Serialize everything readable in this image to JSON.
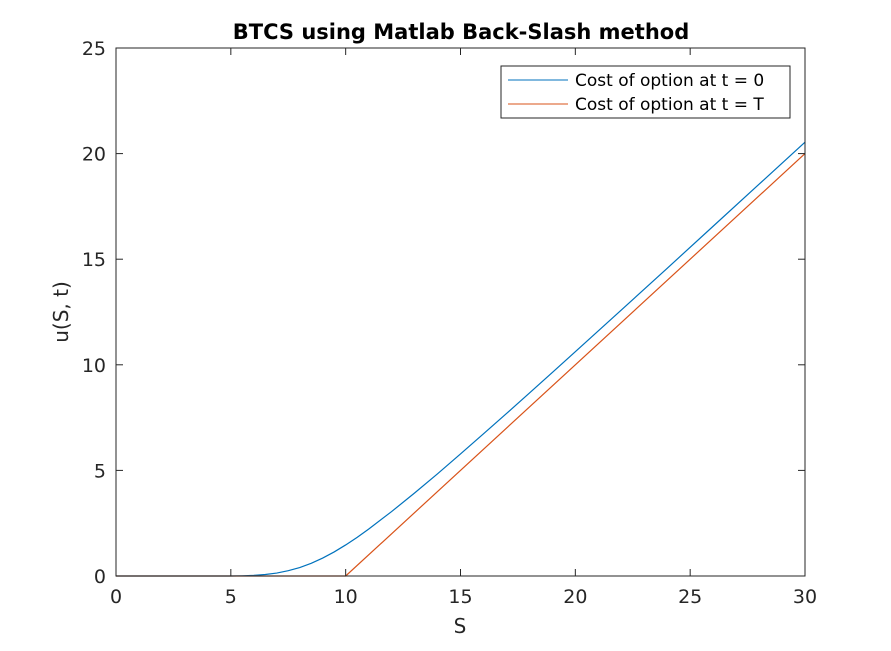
{
  "chart_data": {
    "type": "line",
    "title": "BTCS using Matlab Back-Slash method",
    "xlabel": "S",
    "ylabel": "u(S, t)",
    "xlim": [
      0,
      30
    ],
    "ylim": [
      0,
      25
    ],
    "xticks": [
      0,
      5,
      10,
      15,
      20,
      25,
      30
    ],
    "yticks": [
      0,
      5,
      10,
      15,
      20,
      25
    ],
    "grid": false,
    "legend_position": "top-right",
    "series": [
      {
        "name": "Cost of option at t = 0",
        "color": "#0072BD",
        "x": [
          0,
          5,
          5.5,
          6,
          6.5,
          7,
          7.5,
          8,
          8.5,
          9,
          9.5,
          10,
          10.5,
          11,
          12,
          13,
          14,
          15,
          16,
          17,
          18,
          19,
          20,
          22,
          24,
          26,
          28,
          30
        ],
        "y": [
          0,
          0,
          0.01,
          0.03,
          0.07,
          0.14,
          0.25,
          0.4,
          0.6,
          0.85,
          1.14,
          1.47,
          1.83,
          2.22,
          3.05,
          3.93,
          4.84,
          5.78,
          6.73,
          7.69,
          8.66,
          9.64,
          10.62,
          12.59,
          14.57,
          16.56,
          18.55,
          20.54
        ]
      },
      {
        "name": "Cost of option at t = T",
        "color": "#D95319",
        "x": [
          0,
          10,
          30
        ],
        "y": [
          0,
          0,
          20
        ]
      }
    ]
  }
}
